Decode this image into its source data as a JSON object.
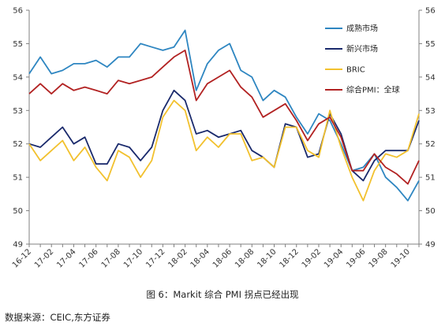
{
  "caption": "图 6：Markit 综合 PMI 拐点已经出现",
  "source": "数据来源：CEIC,东方证券",
  "chart_data": {
    "type": "line",
    "ylim": [
      49,
      56
    ],
    "yticks": [
      "49",
      "50",
      "51",
      "52",
      "53",
      "54",
      "55",
      "56"
    ],
    "x_tick_labels": [
      "16-12",
      "17-02",
      "17-04",
      "17-06",
      "17-08",
      "17-10",
      "17-12",
      "18-02",
      "18-04",
      "18-06",
      "18-08",
      "18-10",
      "18-12",
      "19-02",
      "19-04",
      "19-06",
      "19-08",
      "19-10"
    ],
    "x": [
      "16-12",
      "17-01",
      "17-02",
      "17-03",
      "17-04",
      "17-05",
      "17-06",
      "17-07",
      "17-08",
      "17-09",
      "17-10",
      "17-11",
      "17-12",
      "18-01",
      "18-02",
      "18-03",
      "18-04",
      "18-05",
      "18-06",
      "18-07",
      "18-08",
      "18-09",
      "18-10",
      "18-11",
      "18-12",
      "19-01",
      "19-02",
      "19-03",
      "19-04",
      "19-05",
      "19-06",
      "19-07",
      "19-08",
      "19-09",
      "19-10",
      "19-11"
    ],
    "legend_position": "top-right",
    "grid": false,
    "series": [
      {
        "name": "成熟市场",
        "color": "#2e86c1",
        "values": [
          54.1,
          54.6,
          54.1,
          54.2,
          54.4,
          54.4,
          54.5,
          54.3,
          54.6,
          54.6,
          55.0,
          54.9,
          54.8,
          54.9,
          55.4,
          53.6,
          54.4,
          54.8,
          55.0,
          54.2,
          54.0,
          53.3,
          53.6,
          53.4,
          52.8,
          52.3,
          52.9,
          52.7,
          52.0,
          51.2,
          51.3,
          51.7,
          51.0,
          50.7,
          50.3,
          50.9
        ]
      },
      {
        "name": "新兴市场",
        "color": "#1a2a6c",
        "values": [
          52.0,
          51.9,
          52.2,
          52.5,
          52.0,
          52.2,
          51.4,
          51.4,
          52.0,
          51.9,
          51.5,
          51.9,
          53.0,
          53.6,
          53.3,
          52.3,
          52.4,
          52.2,
          52.3,
          52.4,
          51.8,
          51.6,
          51.3,
          52.6,
          52.5,
          51.6,
          51.7,
          52.9,
          52.3,
          51.2,
          50.9,
          51.5,
          51.8,
          51.8,
          51.8,
          52.7
        ]
      },
      {
        "name": "BRIC",
        "color": "#f2c12e",
        "values": [
          52.0,
          51.5,
          51.8,
          52.1,
          51.5,
          51.9,
          51.3,
          50.9,
          51.8,
          51.6,
          51.0,
          51.5,
          52.8,
          53.3,
          53.0,
          51.8,
          52.2,
          51.9,
          52.3,
          52.3,
          51.5,
          51.6,
          51.3,
          52.5,
          52.5,
          51.8,
          51.6,
          53.0,
          51.9,
          51.0,
          50.3,
          51.2,
          51.7,
          51.6,
          51.8,
          52.9
        ]
      },
      {
        "name": "综合PMI：全球",
        "color": "#b22222",
        "values": [
          53.5,
          53.8,
          53.5,
          53.8,
          53.6,
          53.7,
          53.6,
          53.5,
          53.9,
          53.8,
          53.9,
          54.0,
          54.3,
          54.6,
          54.8,
          53.3,
          53.8,
          54.0,
          54.2,
          53.7,
          53.4,
          52.8,
          53.0,
          53.2,
          52.7,
          52.1,
          52.6,
          52.8,
          52.2,
          51.2,
          51.2,
          51.7,
          51.3,
          51.1,
          50.8,
          51.5
        ]
      }
    ]
  }
}
